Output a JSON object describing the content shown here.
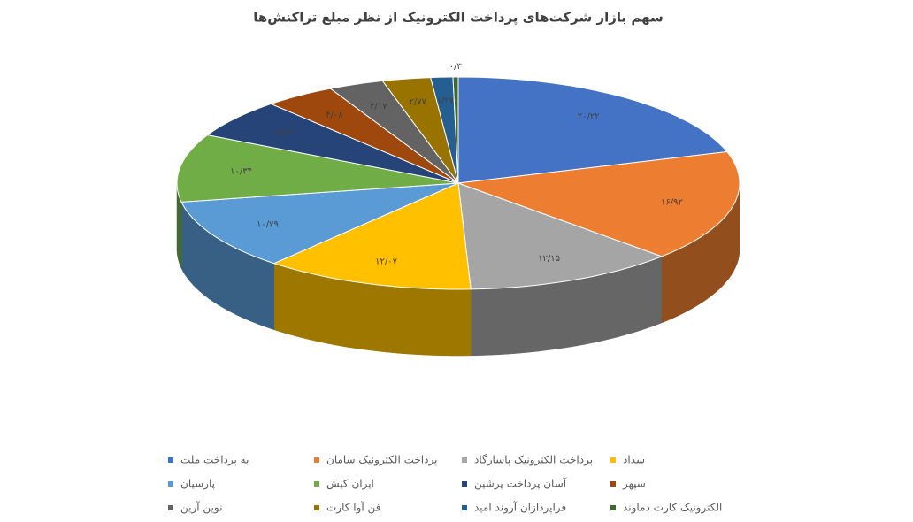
{
  "chart_data": {
    "type": "pie3d",
    "title": "سهم بازار شرکت‌های پرداخت الکترونیک از نظر مبلغ تراکنش‌ها",
    "categories": [
      "به پرداخت ملت",
      "پرداخت الکترونیک سامان",
      "پرداخت الکترونیک پاسارگاد",
      "سداد",
      "پارسیان",
      "ایران کیش",
      "آسان پرداخت پرشین",
      "سپهر",
      "نوین آرین",
      "فن آوا کارت",
      "فراپردازان آروند امید",
      "الکترونیک کارت دماوند"
    ],
    "values": [
      20.22,
      16.92,
      12.15,
      12.07,
      10.79,
      10.34,
      5.92,
      4.08,
      3.17,
      2.77,
      1.27,
      0.3
    ],
    "value_labels": [
      "۲۰/۲۲",
      "۱۶/۹۲",
      "۱۲/۱۵",
      "۱۲/۰۷",
      "۱۰/۷۹",
      "۱۰/۳۴",
      "۵/۹۲",
      "۴/۰۸",
      "۳/۱۷",
      "۲/۷۷",
      "۱/۲۷",
      "۰/۳"
    ],
    "colors": [
      "#4472c4",
      "#ed7d31",
      "#a5a5a5",
      "#ffc000",
      "#5b9bd5",
      "#70ad47",
      "#264478",
      "#9e480e",
      "#636363",
      "#997300",
      "#255e91",
      "#43682b"
    ]
  }
}
